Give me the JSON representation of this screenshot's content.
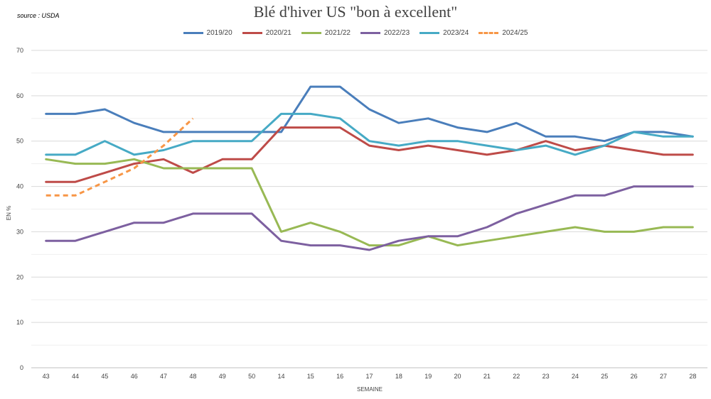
{
  "source_note": "source : USDA",
  "chart_data": {
    "type": "line",
    "title": "Blé d'hiver US \"bon à excellent\"",
    "xlabel": "SEMAINE",
    "ylabel": "EN %",
    "ylim": [
      0,
      70
    ],
    "yticks": [
      0,
      10,
      20,
      30,
      40,
      50,
      60,
      70
    ],
    "grid": true,
    "legend_position": "top",
    "categories": [
      "43",
      "44",
      "45",
      "46",
      "47",
      "48",
      "49",
      "50",
      "14",
      "15",
      "16",
      "17",
      "18",
      "19",
      "20",
      "21",
      "22",
      "23",
      "24",
      "25",
      "26",
      "27",
      "28"
    ],
    "series": [
      {
        "name": "2019/20",
        "color": "#4a7ebb",
        "dashed": false,
        "values": [
          56,
          56,
          57,
          54,
          52,
          52,
          52,
          52,
          52,
          62,
          62,
          57,
          54,
          55,
          53,
          52,
          54,
          51,
          51,
          50,
          52,
          52,
          51
        ]
      },
      {
        "name": "2020/21",
        "color": "#be4b48",
        "dashed": false,
        "values": [
          41,
          41,
          43,
          45,
          46,
          43,
          46,
          46,
          53,
          53,
          53,
          49,
          48,
          49,
          48,
          47,
          48,
          50,
          48,
          49,
          48,
          47,
          47
        ]
      },
      {
        "name": "2021/22",
        "color": "#98b954",
        "dashed": false,
        "values": [
          46,
          45,
          45,
          46,
          44,
          44,
          44,
          44,
          30,
          32,
          30,
          27,
          27,
          29,
          27,
          28,
          29,
          30,
          31,
          30,
          30,
          31,
          31
        ]
      },
      {
        "name": "2022/23",
        "color": "#7d60a0",
        "dashed": false,
        "values": [
          28,
          28,
          30,
          32,
          32,
          34,
          34,
          34,
          28,
          27,
          27,
          26,
          28,
          29,
          29,
          31,
          34,
          36,
          38,
          38,
          40,
          40,
          40
        ]
      },
      {
        "name": "2023/24",
        "color": "#46aac5",
        "dashed": false,
        "values": [
          47,
          47,
          50,
          47,
          48,
          50,
          50,
          50,
          56,
          56,
          55,
          50,
          49,
          50,
          50,
          49,
          48,
          49,
          47,
          49,
          52,
          51,
          51
        ]
      },
      {
        "name": "2024/25",
        "color": "#f79646",
        "dashed": true,
        "values": [
          38,
          38,
          41,
          44,
          49,
          55,
          null,
          null,
          null,
          null,
          null,
          null,
          null,
          null,
          null,
          null,
          null,
          null,
          null,
          null,
          null,
          null,
          null
        ]
      }
    ]
  }
}
